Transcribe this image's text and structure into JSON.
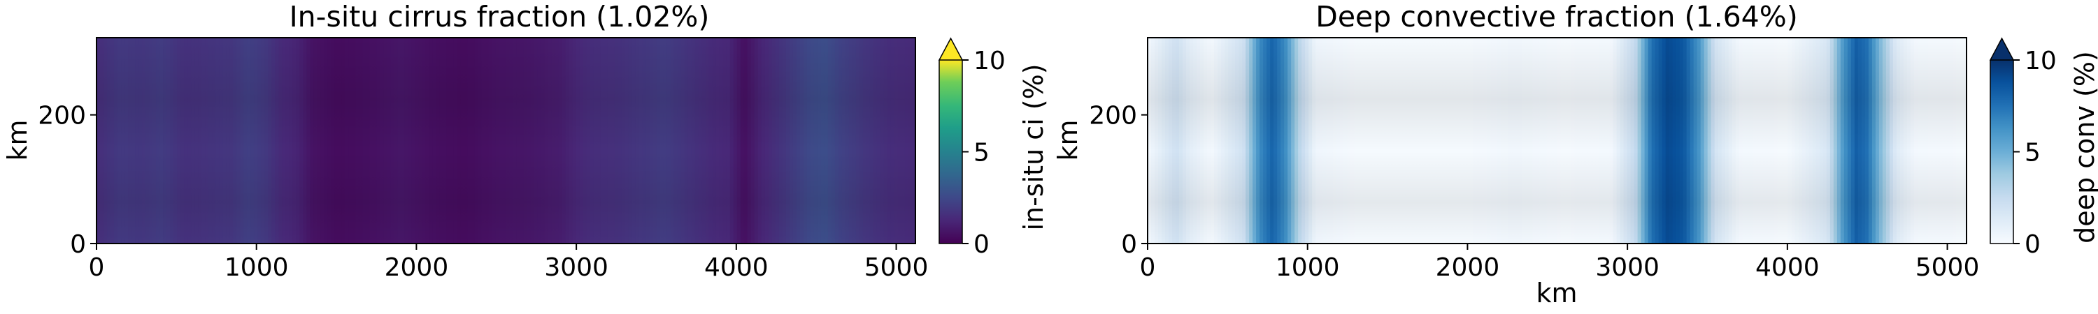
{
  "chart_data": [
    {
      "type": "heatmap",
      "title": "In-situ cirrus fraction (1.02%)",
      "xlabel": "",
      "ylabel": "km",
      "xlim": [
        0,
        5120
      ],
      "ylim": [
        0,
        320
      ],
      "xticks": [
        0,
        1000,
        2000,
        3000,
        4000,
        5000
      ],
      "yticks": [
        0,
        200
      ],
      "colormap": "viridis",
      "colorbar": {
        "label": "in-situ ci (%)",
        "range": [
          0,
          10
        ],
        "ticks": [
          0,
          5,
          10
        ],
        "extend": "max"
      },
      "column_profile": {
        "x": [
          0,
          150,
          300,
          400,
          550,
          700,
          850,
          950,
          1050,
          1150,
          1250,
          1350,
          1500,
          1700,
          1900,
          2100,
          2300,
          2500,
          2700,
          2900,
          3000,
          3100,
          3250,
          3400,
          3550,
          3700,
          3850,
          3950,
          4050,
          4150,
          4300,
          4450,
          4550,
          4650,
          4800,
          4950,
          5100
        ],
        "values": [
          1.3,
          1.7,
          1.6,
          1.8,
          1.4,
          1.5,
          1.6,
          1.9,
          1.7,
          1.2,
          1.0,
          0.5,
          0.3,
          0.4,
          0.6,
          0.4,
          0.3,
          0.5,
          0.6,
          0.8,
          1.1,
          1.3,
          1.4,
          1.6,
          1.8,
          1.5,
          1.2,
          1.1,
          0.4,
          1.0,
          1.6,
          2.2,
          2.4,
          2.0,
          1.6,
          1.3,
          1.2
        ]
      }
    },
    {
      "type": "heatmap",
      "title": "Deep convective fraction (1.64%)",
      "xlabel": "km",
      "ylabel": "km",
      "xlim": [
        0,
        5120
      ],
      "ylim": [
        0,
        320
      ],
      "xticks": [
        0,
        1000,
        2000,
        3000,
        4000,
        5000
      ],
      "yticks": [
        0,
        200
      ],
      "colormap": "Blues",
      "colorbar": {
        "label": "deep conv (%)",
        "range": [
          0,
          10
        ],
        "ticks": [
          0,
          5,
          10
        ],
        "extend": "max"
      },
      "column_profile": {
        "x": [
          0,
          100,
          180,
          260,
          400,
          600,
          700,
          780,
          860,
          950,
          1050,
          1300,
          2000,
          2300,
          2600,
          2900,
          3050,
          3150,
          3250,
          3350,
          3450,
          3550,
          3700,
          4000,
          4250,
          4350,
          4430,
          4500,
          4580,
          4680,
          4800,
          5120
        ],
        "values": [
          0.2,
          1.2,
          2.0,
          1.0,
          0.2,
          2.0,
          6.5,
          8.0,
          6.5,
          2.8,
          0.4,
          0.1,
          0.1,
          0.3,
          0.1,
          0.2,
          2.5,
          7.5,
          9.0,
          8.5,
          6.0,
          1.8,
          0.2,
          0.1,
          1.5,
          6.0,
          8.2,
          7.5,
          4.5,
          1.2,
          0.2,
          0.1
        ]
      }
    }
  ]
}
